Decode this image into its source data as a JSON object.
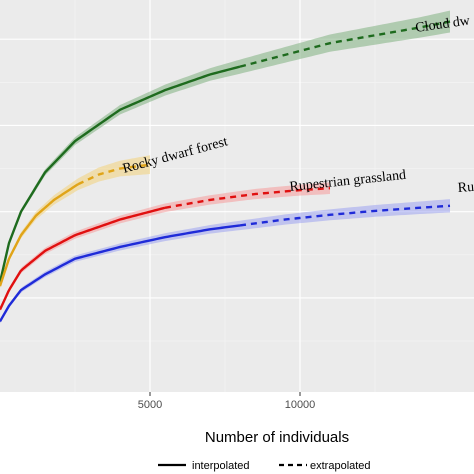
{
  "chart_data": {
    "type": "line",
    "xlabel": "Number of individuals",
    "ylabel": "",
    "xlim": [
      0,
      15000
    ],
    "ylim": [
      0,
      1
    ],
    "x_ticks": [
      5000,
      10000
    ],
    "x_tick_labels": [
      "5000",
      "10000"
    ],
    "grid": true,
    "legend_placement": "bottom",
    "legend": [
      {
        "label": "interpolated",
        "style": "solid"
      },
      {
        "label": "extrapolated",
        "style": "dashed"
      }
    ],
    "series": [
      {
        "name": "Cloud dwarf forest",
        "label_text": "Cloud dw",
        "color": "#1e6b1e",
        "band_color": "#7fb07f",
        "x_observed": 8000,
        "x_end": 15000,
        "x": [
          0,
          300,
          700,
          1500,
          2500,
          4000,
          5500,
          7000,
          8000,
          9500,
          11000,
          12500,
          14000,
          15000
        ],
        "y": [
          0.28,
          0.38,
          0.46,
          0.56,
          0.64,
          0.72,
          0.77,
          0.81,
          0.83,
          0.86,
          0.89,
          0.91,
          0.93,
          0.945
        ],
        "band": [
          0.005,
          0.005,
          0.006,
          0.008,
          0.01,
          0.012,
          0.014,
          0.016,
          0.018,
          0.02,
          0.022,
          0.024,
          0.026,
          0.028
        ]
      },
      {
        "name": "Rocky dwarf forest",
        "label_text": "Rocky dwarf forest",
        "color": "#e0a418",
        "band_color": "#f3d27a",
        "x_observed": 2600,
        "x_end": 5000,
        "x": [
          0,
          300,
          700,
          1200,
          1800,
          2600,
          3300,
          4000,
          5000
        ],
        "y": [
          0.27,
          0.34,
          0.4,
          0.45,
          0.49,
          0.53,
          0.555,
          0.57,
          0.58
        ],
        "band": [
          0.005,
          0.006,
          0.008,
          0.01,
          0.012,
          0.015,
          0.018,
          0.02,
          0.024
        ]
      },
      {
        "name": "Rupestrian grassland",
        "label_text": "Rupestrian grassland",
        "color": "#e01010",
        "band_color": "#f59a9a",
        "x_observed": 5500,
        "x_end": 11000,
        "x": [
          0,
          300,
          700,
          1500,
          2500,
          4000,
          5500,
          7000,
          8500,
          10000,
          11000
        ],
        "y": [
          0.21,
          0.26,
          0.31,
          0.36,
          0.4,
          0.44,
          0.47,
          0.49,
          0.505,
          0.515,
          0.52
        ],
        "band": [
          0.005,
          0.006,
          0.007,
          0.008,
          0.009,
          0.01,
          0.011,
          0.012,
          0.013,
          0.014,
          0.015
        ]
      },
      {
        "name": "Rupestrian",
        "label_text": "Ru",
        "color": "#1f2bd8",
        "band_color": "#9ca3f0",
        "x_observed": 8000,
        "x_end": 15000,
        "x": [
          0,
          300,
          700,
          1500,
          2500,
          4000,
          5500,
          7000,
          8000,
          9500,
          11000,
          12500,
          14000,
          15000
        ],
        "y": [
          0.18,
          0.22,
          0.26,
          0.3,
          0.34,
          0.37,
          0.395,
          0.415,
          0.425,
          0.44,
          0.452,
          0.462,
          0.47,
          0.475
        ],
        "band": [
          0.005,
          0.005,
          0.006,
          0.007,
          0.008,
          0.009,
          0.01,
          0.011,
          0.012,
          0.013,
          0.014,
          0.015,
          0.016,
          0.017
        ]
      }
    ]
  }
}
